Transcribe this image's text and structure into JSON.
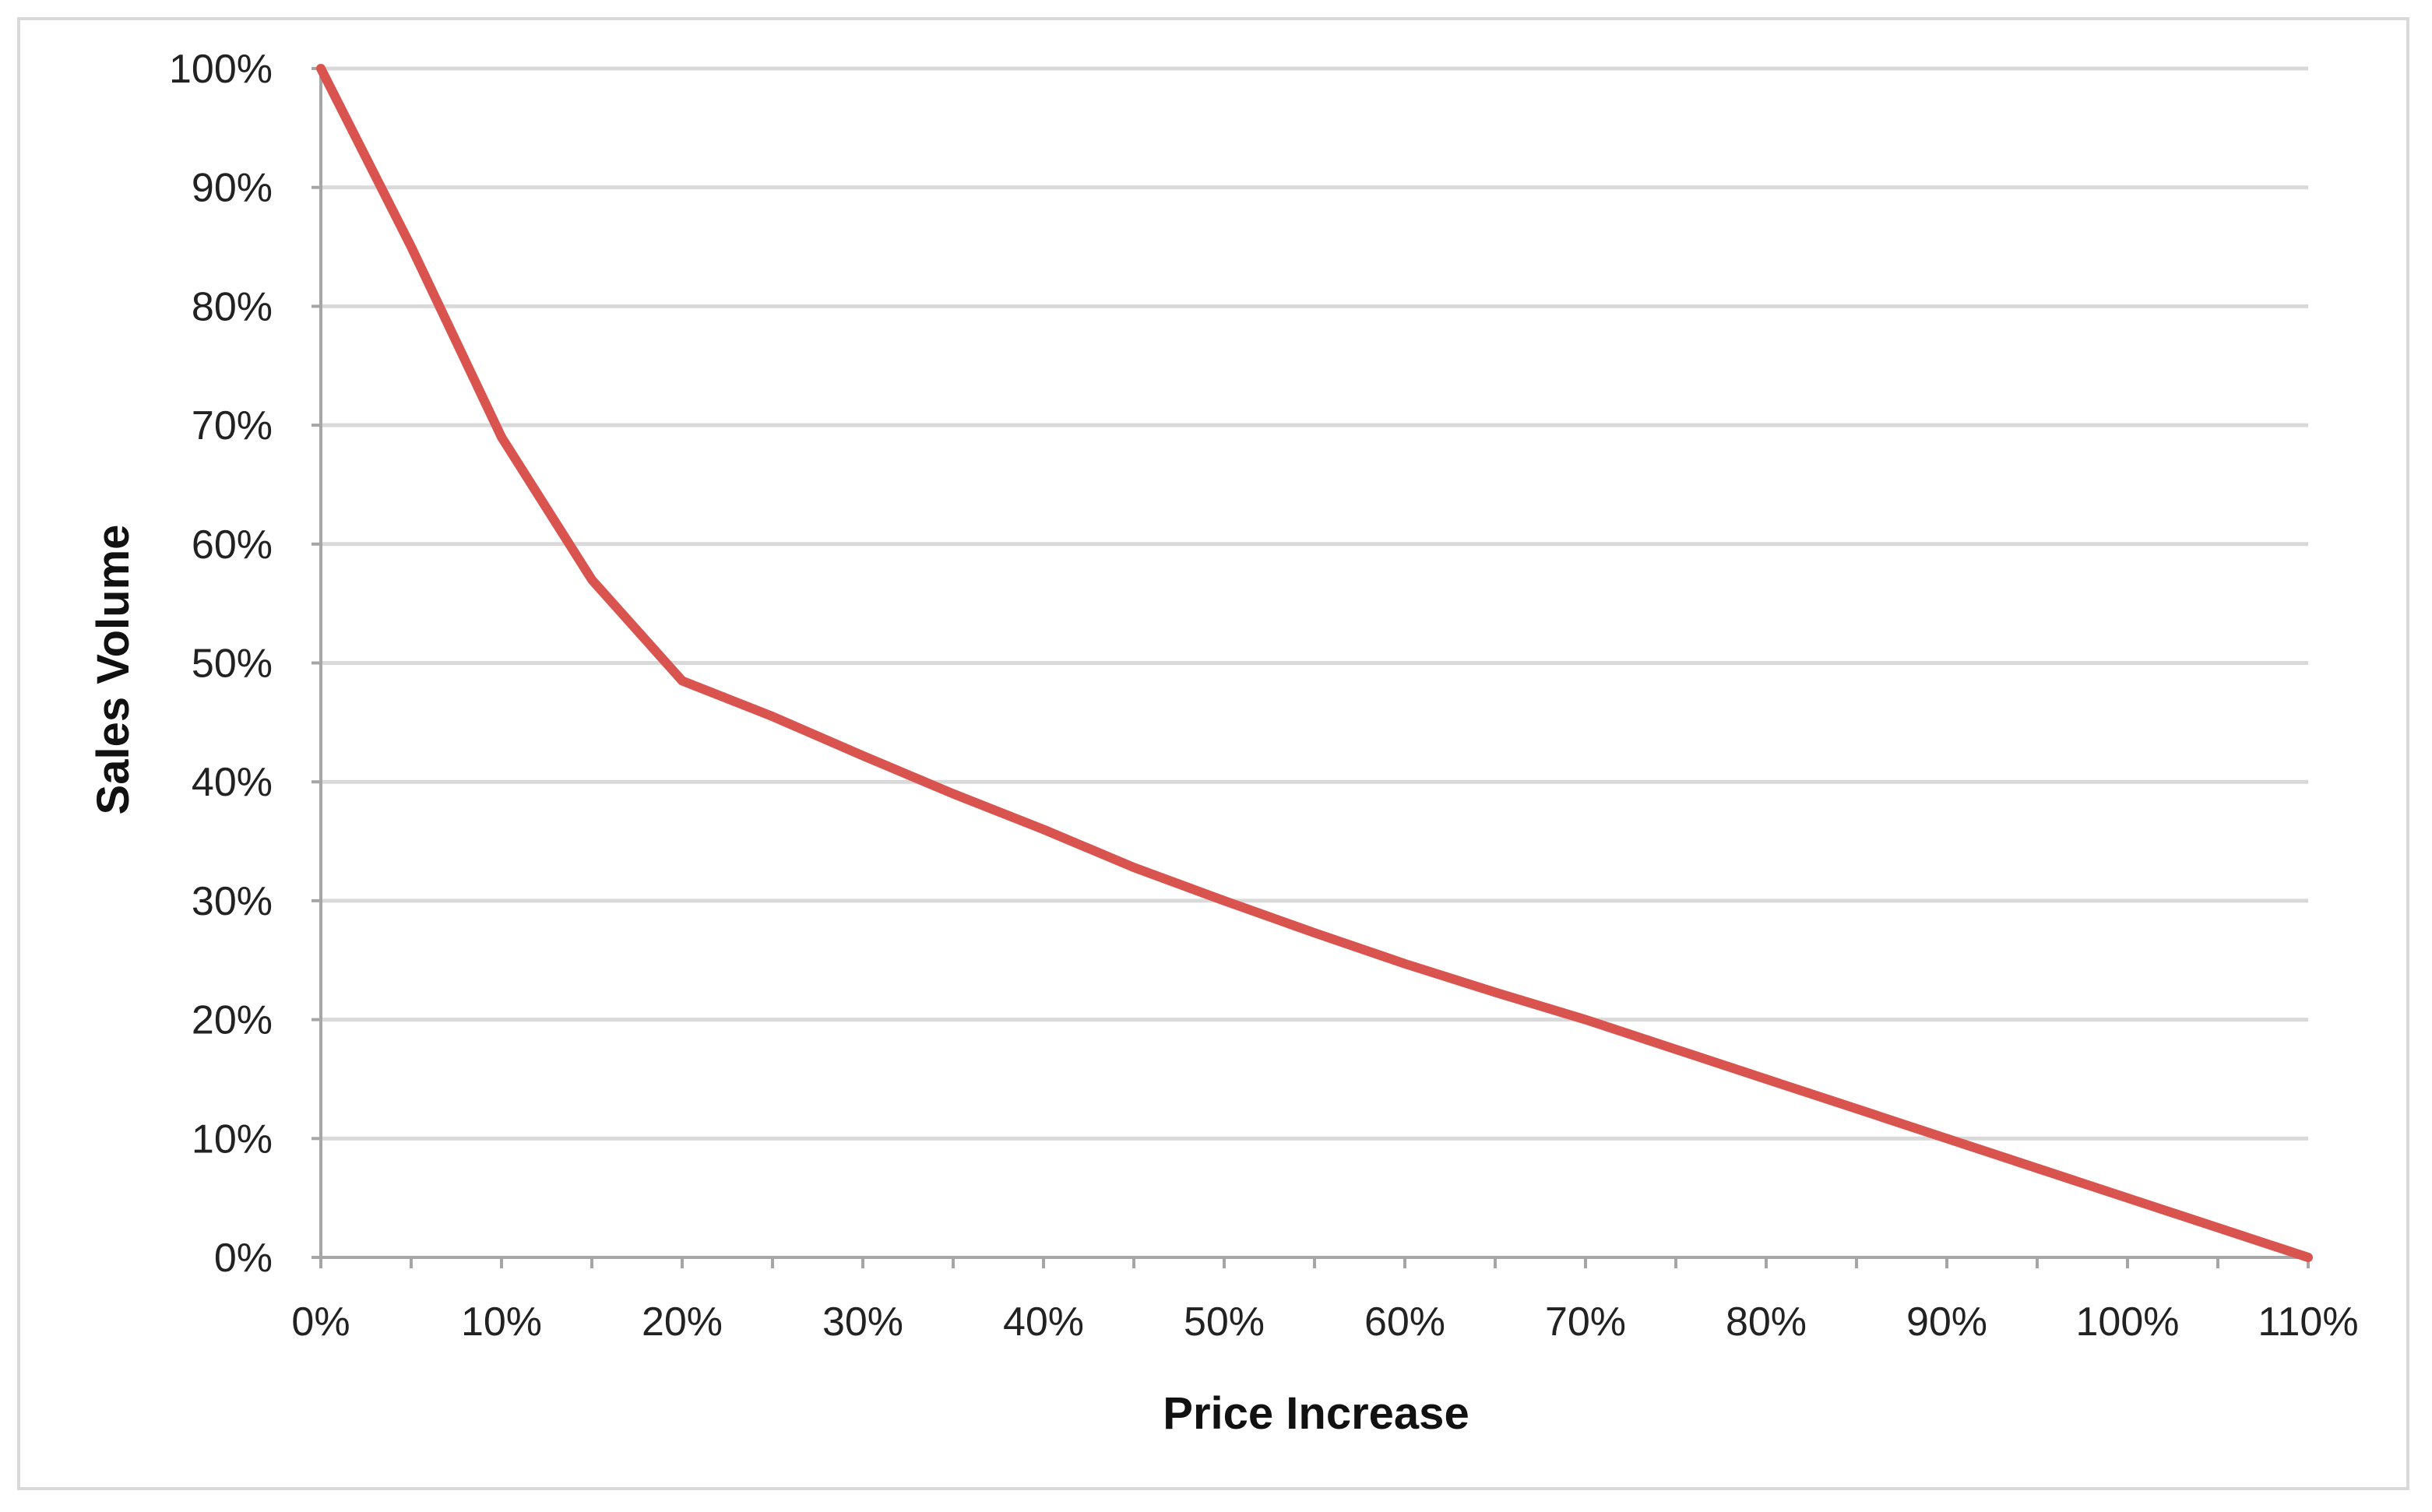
{
  "chart_data": {
    "type": "line",
    "title": "",
    "xlabel": "Price Increase",
    "ylabel": "Sales Volume",
    "x_ticks": [
      "0%",
      "10%",
      "20%",
      "30%",
      "40%",
      "50%",
      "60%",
      "70%",
      "80%",
      "90%",
      "100%",
      "110%"
    ],
    "y_ticks": [
      "0%",
      "10%",
      "20%",
      "30%",
      "40%",
      "50%",
      "60%",
      "70%",
      "80%",
      "90%",
      "100%"
    ],
    "xlim": [
      0,
      110
    ],
    "ylim": [
      0,
      100
    ],
    "grid": true,
    "legend": "none",
    "series": [
      {
        "color": "#d9534f",
        "x": [
          0,
          5,
          10,
          15,
          20,
          25,
          30,
          35,
          40,
          45,
          50,
          55,
          60,
          65,
          70,
          75,
          80,
          85,
          90,
          95,
          100,
          105,
          110
        ],
        "y": [
          100,
          85,
          69,
          57,
          48.5,
          45.5,
          42.2,
          39,
          36,
          32.8,
          30,
          27.3,
          24.7,
          22.3,
          20,
          17.5,
          15,
          12.5,
          10,
          7.5,
          5,
          2.5,
          0
        ]
      }
    ]
  },
  "colors": {
    "line": "#d9534f",
    "grid": "#d9d9d9",
    "axis": "#a6a6a6",
    "frame": "#d9d9d9"
  }
}
